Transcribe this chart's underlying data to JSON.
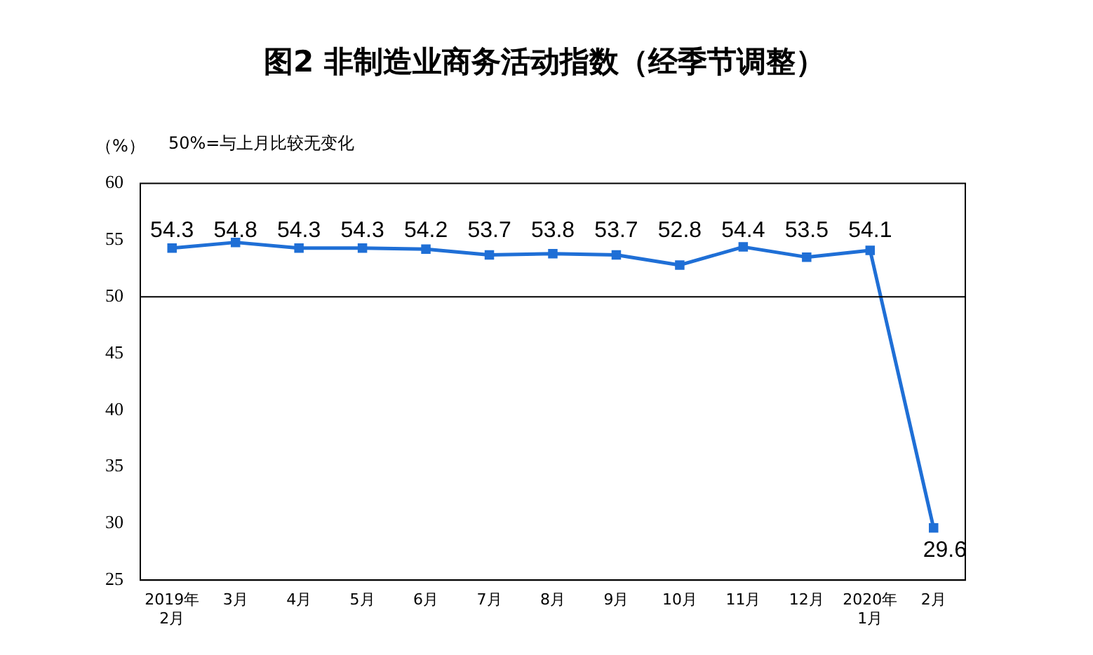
{
  "chart_data": {
    "type": "line",
    "title": "图2 非制造业商务活动指数（经季节调整）",
    "ylabel": "（%）",
    "annotations": [
      "50%=与上月比较无变化"
    ],
    "categories": [
      "2019年\n2月",
      "3月",
      "4月",
      "5月",
      "6月",
      "7月",
      "8月",
      "9月",
      "10月",
      "11月",
      "12月",
      "2020年\n1月",
      "2月"
    ],
    "series": [
      {
        "color": "#1f6fd6",
        "values": [
          54.3,
          54.8,
          54.3,
          54.3,
          54.2,
          53.7,
          53.8,
          53.7,
          52.8,
          54.4,
          53.5,
          54.1,
          29.6
        ]
      }
    ],
    "ylim": [
      25,
      60
    ],
    "yticks": [
      25,
      30,
      35,
      40,
      45,
      50,
      55,
      60
    ],
    "ref_lines": [
      {
        "axis": "y",
        "value": 50,
        "color": "#000000"
      }
    ],
    "data_labels": true,
    "marker": "square",
    "grid": false,
    "legend": false
  }
}
